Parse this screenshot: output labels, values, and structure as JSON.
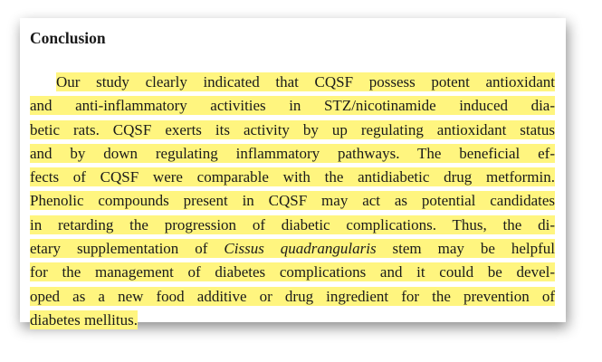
{
  "heading": "Conclusion",
  "paragraph": {
    "lines": [
      {
        "parts": [
          "Our study clearly indicated that CQSF possess potent antioxidant"
        ]
      },
      {
        "parts": [
          "and anti-inflammatory activities in STZ/nicotinamide induced dia-"
        ]
      },
      {
        "parts": [
          "betic rats. CQSF exerts its activity by up regulating antioxidant status"
        ]
      },
      {
        "parts": [
          "and by down regulating inflammatory pathways. The beneficial ef-"
        ]
      },
      {
        "parts": [
          "fects of CQSF were comparable with the antidiabetic drug metformin."
        ]
      },
      {
        "parts": [
          "Phenolic compounds present in CQSF may act as potential candidates"
        ]
      },
      {
        "parts": [
          "in retarding the progression of diabetic complications. Thus, the di-"
        ]
      },
      {
        "parts": [
          "etary supplementation of ",
          "Cissus quadrangularis",
          " stem may be helpful"
        ],
        "italic_part": 1
      },
      {
        "parts": [
          "for the management of diabetes complications and it could be devel-"
        ]
      },
      {
        "parts": [
          "oped as a new food additive or drug ingredient for the prevention of"
        ]
      },
      {
        "parts": [
          "diabetes mellitus."
        ]
      }
    ],
    "highlight_color": "#fff57f"
  }
}
